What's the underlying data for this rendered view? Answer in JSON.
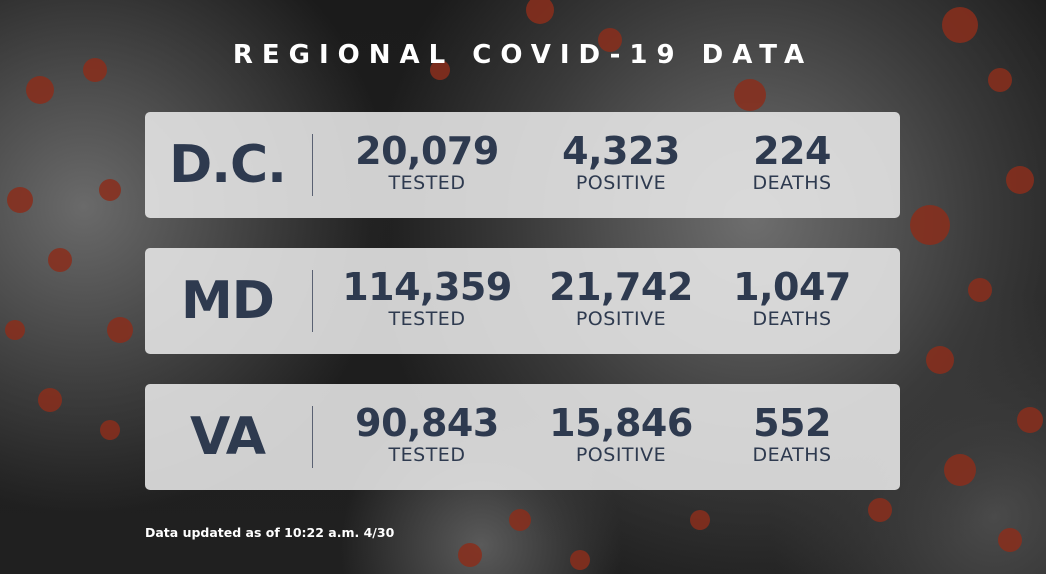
{
  "title": "REGIONAL COVID-19 DATA",
  "regions": [
    {
      "abbr": "D.C.",
      "tested": "20,079",
      "tested_label": "TESTED",
      "positive": "4,323",
      "positive_label": "POSITIVE",
      "deaths": "224",
      "deaths_label": "DEATHS"
    },
    {
      "abbr": "MD",
      "tested": "114,359",
      "tested_label": "TESTED",
      "positive": "21,742",
      "positive_label": "POSITIVE",
      "deaths": "1,047",
      "deaths_label": "DEATHS"
    },
    {
      "abbr": "VA",
      "tested": "90,843",
      "tested_label": "TESTED",
      "positive": "15,846",
      "positive_label": "POSITIVE",
      "deaths": "552",
      "deaths_label": "DEATHS"
    }
  ],
  "footnote": "Data updated as of 10:22 a.m. 4/30",
  "colors": {
    "text_dark": "#2e3a4f",
    "card_bg": "#e8e8e8",
    "virus_spike": "#8a2e1c"
  }
}
